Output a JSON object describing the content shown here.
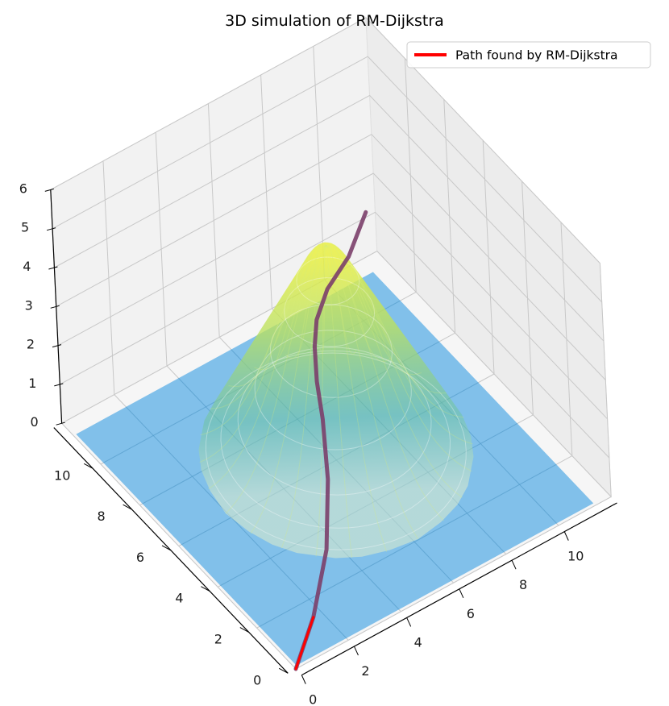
{
  "chart_data": {
    "type": "surface3d",
    "title": "3D simulation of RM-Dijkstra",
    "xlabel": "",
    "ylabel": "",
    "zlabel": "",
    "x_ticks": [
      0,
      2,
      4,
      6,
      8,
      10
    ],
    "y_ticks": [
      0,
      2,
      4,
      6,
      8,
      10
    ],
    "z_ticks": [
      0,
      1,
      2,
      3,
      4,
      5,
      6
    ],
    "xlim": [
      0,
      12
    ],
    "ylim": [
      0,
      12
    ],
    "zlim": [
      0,
      6
    ],
    "grid": true,
    "legend_position": "top-right",
    "surfaces": [
      {
        "kind": "gaussian_peak",
        "center_x": 6,
        "center_y": 6,
        "peak_height": 5.5,
        "sigma": 1.6,
        "colormap": "viridis-yellow",
        "opacity": 0.55
      },
      {
        "kind": "plane",
        "z": 0,
        "color": "#5aaee6",
        "opacity": 0.75
      }
    ],
    "series": [
      {
        "name": "Path found by RM-Dijkstra",
        "color": "#ff0000",
        "points": [
          {
            "x": 0,
            "y": 0,
            "z": 0
          },
          {
            "x": 1.5,
            "y": 1.1,
            "z": 0.2
          },
          {
            "x": 3.0,
            "y": 2.4,
            "z": 0.7
          },
          {
            "x": 4.0,
            "y": 3.6,
            "z": 1.5
          },
          {
            "x": 4.6,
            "y": 4.6,
            "z": 2.3
          },
          {
            "x": 5.0,
            "y": 5.4,
            "z": 2.7
          },
          {
            "x": 5.6,
            "y": 6.3,
            "z": 2.9
          },
          {
            "x": 6.2,
            "y": 7.0,
            "z": 3.0
          },
          {
            "x": 7.2,
            "y": 7.8,
            "z": 3.0
          },
          {
            "x": 8.6,
            "y": 8.6,
            "z": 2.9
          },
          {
            "x": 10.0,
            "y": 9.6,
            "z": 3.0
          }
        ]
      }
    ],
    "legend": [
      {
        "label": "Path found by RM-Dijkstra",
        "color": "#ff0000"
      }
    ]
  }
}
